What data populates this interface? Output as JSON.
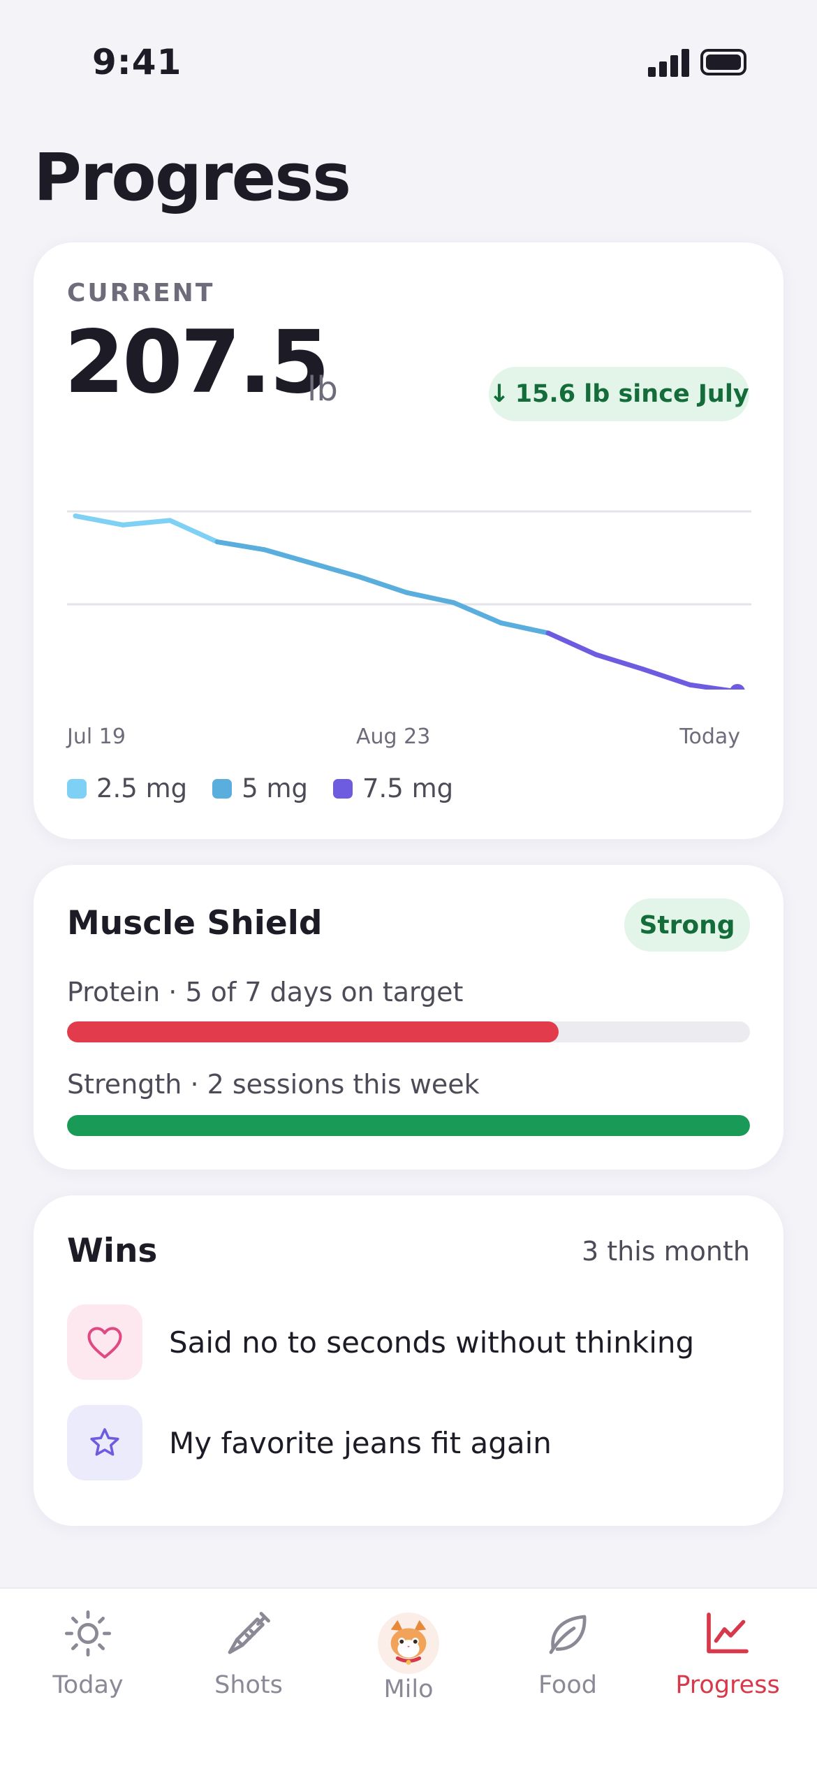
{
  "status_bar": {
    "time": "9:41"
  },
  "page": {
    "title": "Progress"
  },
  "current_card": {
    "label": "CURRENT",
    "value": "207.5",
    "unit": "lb",
    "delta_arrow": "↓",
    "delta_text": "15.6 lb since July"
  },
  "chart_data": {
    "type": "line",
    "x_labels": [
      "Jul 19",
      "Aug 23",
      "Today"
    ],
    "ylim": [
      207,
      223.5
    ],
    "grid": true,
    "points": [
      {
        "x": 0,
        "y": 223.1,
        "dose": "2.5 mg"
      },
      {
        "x": 1,
        "y": 222.3,
        "dose": "2.5 mg"
      },
      {
        "x": 2,
        "y": 222.7,
        "dose": "2.5 mg"
      },
      {
        "x": 3,
        "y": 220.8,
        "dose": "2.5 mg"
      },
      {
        "x": 4,
        "y": 220.1,
        "dose": "5 mg"
      },
      {
        "x": 5,
        "y": 218.9,
        "dose": "5 mg"
      },
      {
        "x": 6,
        "y": 217.7,
        "dose": "5 mg"
      },
      {
        "x": 7,
        "y": 216.3,
        "dose": "5 mg"
      },
      {
        "x": 8,
        "y": 215.4,
        "dose": "5 mg"
      },
      {
        "x": 9,
        "y": 213.6,
        "dose": "5 mg"
      },
      {
        "x": 10,
        "y": 212.7,
        "dose": "5 mg"
      },
      {
        "x": 11,
        "y": 210.8,
        "dose": "7.5 mg"
      },
      {
        "x": 12,
        "y": 209.5,
        "dose": "7.5 mg"
      },
      {
        "x": 13,
        "y": 208.1,
        "dose": "7.5 mg"
      },
      {
        "x": 14,
        "y": 207.5,
        "dose": "7.5 mg"
      }
    ],
    "series": [
      {
        "name": "2.5 mg",
        "color": "#7fd0f5"
      },
      {
        "name": "5 mg",
        "color": "#5aaedd"
      },
      {
        "name": "7.5 mg",
        "color": "#6e5ce0"
      }
    ]
  },
  "muscle_shield": {
    "title": "Muscle Shield",
    "status": "Strong",
    "protein_label": "Protein · 5 of 7 days on target",
    "protein_progress": 0.72,
    "protein_color": "#e23b4b",
    "strength_label": "Strength · 2 sessions this week",
    "strength_progress": 1.0,
    "strength_color": "#1a9a57"
  },
  "wins": {
    "title": "Wins",
    "count": "3 this month",
    "items": [
      {
        "icon": "heart-icon",
        "text": "Said no to seconds without thinking"
      },
      {
        "icon": "star-icon",
        "text": "My favorite jeans fit again"
      }
    ]
  },
  "tabs": [
    {
      "label": "Today",
      "icon": "sun-icon"
    },
    {
      "label": "Shots",
      "icon": "syringe-icon"
    },
    {
      "label": "Milo",
      "icon": "cat-avatar-icon"
    },
    {
      "label": "Food",
      "icon": "leaf-icon"
    },
    {
      "label": "Progress",
      "icon": "chart-icon",
      "active": true
    }
  ],
  "colors": {
    "accent": "#d8394a",
    "success": "#136c3a"
  }
}
